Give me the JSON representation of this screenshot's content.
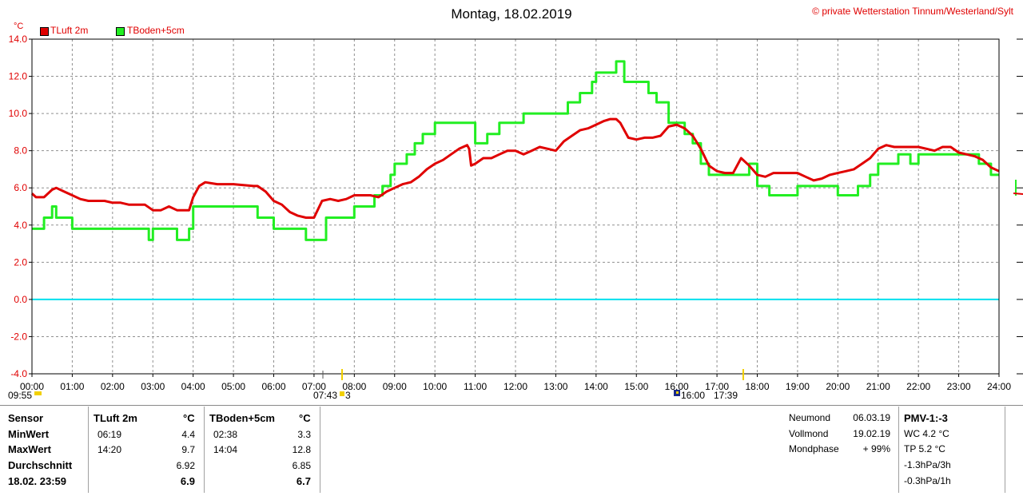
{
  "header": {
    "title": "Montag, 18.02.2019",
    "copyright": "© private Wetterstation Tinnum/Westerland/Sylt"
  },
  "colors": {
    "tluft": "#e00000",
    "tboden": "#22ee22",
    "zero": "#00e0ee",
    "grid": "#909090"
  },
  "chart_data": {
    "type": "line",
    "ylabel": "°C",
    "ylim": [
      -4,
      14
    ],
    "xlim": [
      0,
      24
    ],
    "grid": true,
    "legend_position": "top-left",
    "y_ticks": [
      "14.0",
      "12.0",
      "10.0",
      "8.0",
      "6.0",
      "4.0",
      "2.0",
      "0.0",
      "-2.0",
      "-4.0"
    ],
    "x_ticks": [
      "00:00",
      "01:00",
      "02:00",
      "03:00",
      "04:00",
      "05:00",
      "06:00",
      "07:00",
      "08:00",
      "09:00",
      "10:00",
      "11:00",
      "12:00",
      "13:00",
      "14:00",
      "15:00",
      "16:00",
      "17:00",
      "18:00",
      "19:00",
      "20:00",
      "21:00",
      "22:00",
      "23:00",
      "24:00"
    ],
    "series": [
      {
        "name": "TLuft 2m",
        "color": "#e00000",
        "step": false,
        "x": [
          0,
          0.1,
          0.3,
          0.5,
          0.6,
          0.8,
          1.0,
          1.2,
          1.4,
          1.6,
          1.8,
          2.0,
          2.2,
          2.4,
          2.6,
          2.8,
          3.0,
          3.2,
          3.4,
          3.6,
          3.8,
          3.9,
          4.0,
          4.15,
          4.3,
          4.6,
          5.0,
          5.5,
          5.6,
          5.8,
          6.0,
          6.2,
          6.4,
          6.6,
          6.8,
          7.0,
          7.2,
          7.4,
          7.6,
          7.8,
          8.0,
          8.2,
          8.4,
          8.6,
          8.8,
          9.0,
          9.2,
          9.4,
          9.6,
          9.8,
          10.0,
          10.2,
          10.4,
          10.6,
          10.8,
          10.85,
          10.9,
          11.0,
          11.2,
          11.4,
          11.6,
          11.8,
          12.0,
          12.2,
          12.4,
          12.6,
          12.8,
          13.0,
          13.2,
          13.4,
          13.6,
          13.8,
          14.0,
          14.2,
          14.35,
          14.5,
          14.6,
          14.8,
          15.0,
          15.2,
          15.4,
          15.6,
          15.8,
          16.0,
          16.2,
          16.4,
          16.6,
          16.8,
          17.0,
          17.2,
          17.4,
          17.6,
          17.8,
          18.0,
          18.2,
          18.4,
          18.6,
          18.8,
          19.0,
          19.2,
          19.4,
          19.6,
          19.8,
          20.0,
          20.2,
          20.4,
          20.6,
          20.8,
          21.0,
          21.2,
          21.4,
          21.6,
          21.8,
          22.0,
          22.2,
          22.4,
          22.6,
          22.8,
          23.0,
          23.2,
          23.4,
          23.6,
          23.8,
          24.0
        ],
        "y": [
          5.7,
          5.5,
          5.5,
          5.9,
          6.0,
          5.8,
          5.6,
          5.4,
          5.3,
          5.3,
          5.3,
          5.2,
          5.2,
          5.1,
          5.1,
          5.1,
          4.8,
          4.8,
          5.0,
          4.8,
          4.8,
          4.8,
          5.5,
          6.1,
          6.3,
          6.2,
          6.2,
          6.1,
          6.1,
          5.8,
          5.3,
          5.1,
          4.7,
          4.5,
          4.4,
          4.4,
          5.3,
          5.4,
          5.3,
          5.4,
          5.6,
          5.6,
          5.6,
          5.5,
          5.8,
          6.0,
          6.2,
          6.3,
          6.6,
          7.0,
          7.3,
          7.5,
          7.8,
          8.1,
          8.3,
          8.1,
          7.2,
          7.3,
          7.6,
          7.6,
          7.8,
          8.0,
          8.0,
          7.8,
          8.0,
          8.2,
          8.1,
          8.0,
          8.5,
          8.8,
          9.1,
          9.2,
          9.4,
          9.6,
          9.7,
          9.7,
          9.5,
          8.7,
          8.6,
          8.7,
          8.7,
          8.8,
          9.3,
          9.4,
          9.2,
          8.8,
          8.1,
          7.2,
          6.9,
          6.8,
          6.8,
          7.6,
          7.2,
          6.7,
          6.6,
          6.8,
          6.8,
          6.8,
          6.8,
          6.6,
          6.4,
          6.5,
          6.7,
          6.8,
          6.9,
          7.0,
          7.3,
          7.6,
          8.1,
          8.3,
          8.2,
          8.2,
          8.2,
          8.2,
          8.1,
          8.0,
          8.2,
          8.2,
          7.9,
          7.8,
          7.7,
          7.5,
          7.1,
          6.9
        ]
      },
      {
        "name": "TBoden+5cm",
        "color": "#22ee22",
        "step": true,
        "x": [
          0,
          0.3,
          0.5,
          0.6,
          0.8,
          1.0,
          1.8,
          2.6,
          2.9,
          3.0,
          3.3,
          3.6,
          3.9,
          4.0,
          5.5,
          5.6,
          6.0,
          6.8,
          7.0,
          7.3,
          7.6,
          8.0,
          8.5,
          8.7,
          8.9,
          9.0,
          9.3,
          9.5,
          9.7,
          10.0,
          10.5,
          10.8,
          11.0,
          11.3,
          11.6,
          12.0,
          12.2,
          12.5,
          13.0,
          13.3,
          13.6,
          13.9,
          14.0,
          14.5,
          14.7,
          14.8,
          15.0,
          15.3,
          15.5,
          15.8,
          16.0,
          16.2,
          16.4,
          16.6,
          16.8,
          17.0,
          17.5,
          17.8,
          18.0,
          18.3,
          19.0,
          19.5,
          20.0,
          20.3,
          20.5,
          20.8,
          21.0,
          21.5,
          21.8,
          22.0,
          22.5,
          22.8,
          23.0,
          23.5,
          23.8,
          24.0
        ],
        "y": [
          3.8,
          4.4,
          5.0,
          4.4,
          4.4,
          3.8,
          3.8,
          3.8,
          3.2,
          3.8,
          3.8,
          3.2,
          3.8,
          5.0,
          5.0,
          4.4,
          3.8,
          3.2,
          3.2,
          4.4,
          4.4,
          5.0,
          5.6,
          6.1,
          6.7,
          7.3,
          7.8,
          8.4,
          8.9,
          9.5,
          9.5,
          9.5,
          8.4,
          8.9,
          9.5,
          9.5,
          10.0,
          10.0,
          10.0,
          10.6,
          11.1,
          11.7,
          12.2,
          12.8,
          11.7,
          11.7,
          11.7,
          11.1,
          10.6,
          9.5,
          9.5,
          8.9,
          8.4,
          7.3,
          6.7,
          6.7,
          6.7,
          7.3,
          6.1,
          5.6,
          6.1,
          6.1,
          5.6,
          5.6,
          6.1,
          6.7,
          7.3,
          7.8,
          7.3,
          7.8,
          7.8,
          7.8,
          7.8,
          7.3,
          6.7,
          6.7
        ]
      }
    ]
  },
  "legend": {
    "tluft": "TLuft 2m",
    "tboden": "TBoden+5cm"
  },
  "sun_events": {
    "morning_left": "09:55",
    "sunrise": "07:43",
    "sunrise_suffix": "3",
    "evening_left": "16:00",
    "sunset": "17:39"
  },
  "stats": {
    "col_sensor": "Sensor",
    "col_tluft": "TLuft 2m",
    "col_tboden": "TBoden+5cm",
    "unit": "°C",
    "rows": [
      {
        "label": "MinWert",
        "t1": "06:19",
        "v1": "4.4",
        "t2": "02:38",
        "v2": "3.3"
      },
      {
        "label": "MaxWert",
        "t1": "14:20",
        "v1": "9.7",
        "t2": "14:04",
        "v2": "12.8"
      },
      {
        "label": "Durchschnitt",
        "t1": "",
        "v1": "6.92",
        "t2": "",
        "v2": "6.85"
      },
      {
        "label": "18.02. 23:59",
        "t1": "",
        "v1": "6.9",
        "t2": "",
        "v2": "6.7"
      }
    ]
  },
  "moon": [
    {
      "label": "Neumond",
      "value": "06.03.19"
    },
    {
      "label": "Vollmond",
      "value": "19.02.19"
    },
    {
      "label": "Mondphase",
      "value": "+ 99%"
    }
  ],
  "pmv": {
    "title": "PMV-1:-3",
    "lines": [
      "WC 4.2 °C",
      "TP 5.2 °C",
      "-1.3hPa/3h",
      "-0.3hPa/1h"
    ]
  }
}
